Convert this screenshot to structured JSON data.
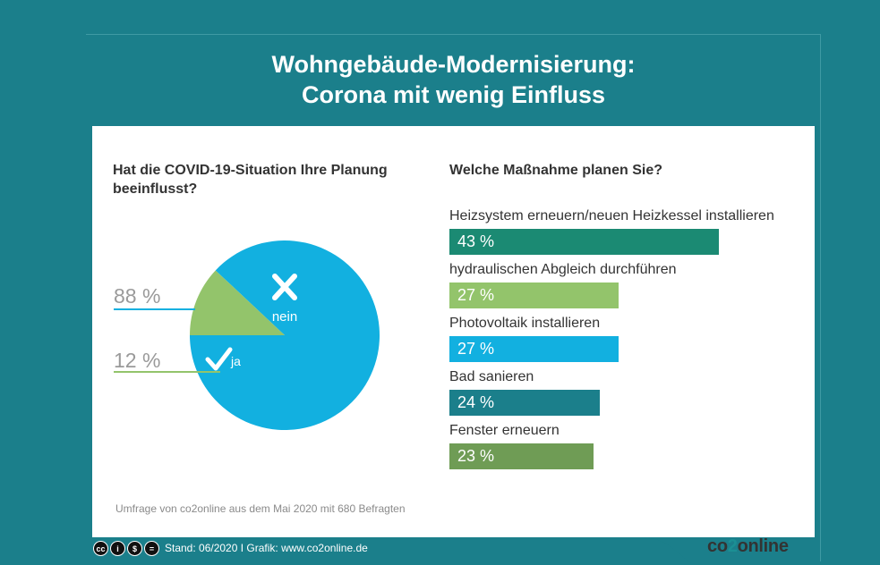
{
  "title": {
    "line1": "Wohngebäude-Modernisierung:",
    "line2": "Corona mit wenig Einfluss"
  },
  "chart_data": [
    {
      "type": "pie",
      "title": "Hat die COVID-19-Situation Ihre Planung beeinflusst?",
      "slices": [
        {
          "label": "nein",
          "value": 88,
          "display": "88 %",
          "color": "#12b0e0"
        },
        {
          "label": "ja",
          "value": 12,
          "display": "12 %",
          "color": "#93c46b"
        }
      ]
    },
    {
      "type": "bar",
      "orientation": "horizontal",
      "title": "Welche Maßnahme planen Sie?",
      "categories": [
        "Heizsystem erneuern/neuen Heizkessel installieren",
        "hydraulischen Abgleich durchführen",
        "Photovoltaik installieren",
        "Bad sanieren",
        "Fenster erneuern"
      ],
      "values": [
        43,
        27,
        27,
        24,
        23
      ],
      "value_labels": [
        "43 %",
        "27 %",
        "27 %",
        "24 %",
        "23 %"
      ],
      "colors": [
        "#1b8a73",
        "#93c46b",
        "#12b0e0",
        "#1b7f8b",
        "#6f9c55"
      ]
    }
  ],
  "source": "Umfrage von co2online aus dem Mai 2020 mit 680 Befragten",
  "footer": {
    "license_icons": [
      "cc",
      "by",
      "nc",
      "nd"
    ],
    "text": "Stand: 06/2020   I   Grafik: www.co2online.de",
    "logo_a": "co",
    "logo_b": "2",
    "logo_c": "online"
  },
  "colors": {
    "background": "#1b7f8b",
    "card": "#ffffff",
    "footer_band": "#1b7f8b"
  }
}
